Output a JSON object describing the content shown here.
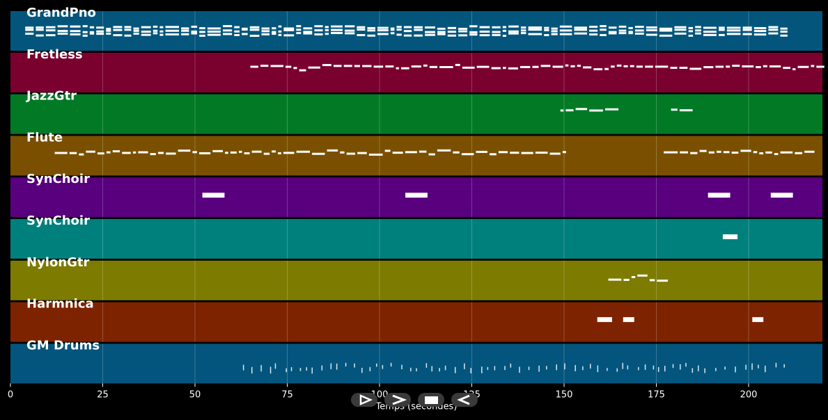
{
  "tracks": [
    {
      "name": "GrandPno",
      "color": "#04557c",
      "pitch": [
        44,
        46,
        45,
        47,
        45,
        44,
        46,
        45,
        47,
        46
      ],
      "spans": [
        [
          4,
          210
        ]
      ],
      "style": "chords"
    },
    {
      "name": "Fretless",
      "color": "#7a002e",
      "pitch": [
        62,
        60,
        61,
        58,
        55,
        52,
        58,
        62,
        60,
        61
      ],
      "spans": [
        [
          65,
          219
        ]
      ],
      "style": "line"
    },
    {
      "name": "JazzGtr",
      "color": "#027a25",
      "pitch": [
        55,
        55
      ],
      "spans": [
        [
          149,
          163
        ],
        [
          179,
          182
        ]
      ],
      "style": "line"
    },
    {
      "name": "Flute",
      "color": "#7a5000",
      "pitch": [
        50,
        52,
        48,
        55,
        50,
        52,
        53,
        49,
        55,
        51
      ],
      "spans": [
        [
          12,
          150
        ],
        [
          177,
          217
        ]
      ],
      "style": "line"
    },
    {
      "name": "SynChoir",
      "color": "#58007e",
      "pitch": [
        50,
        50
      ],
      "spans": [
        [
          52,
          58
        ],
        [
          107,
          113
        ],
        [
          189,
          195
        ],
        [
          206,
          212
        ]
      ],
      "style": "block"
    },
    {
      "name": "SynChoir",
      "color": "#00807d",
      "pitch": [
        50
      ],
      "spans": [
        [
          193,
          197
        ]
      ],
      "style": "block"
    },
    {
      "name": "NylonGtr",
      "color": "#7d7b00",
      "pitch": [
        45,
        44,
        50,
        58
      ],
      "spans": [
        [
          162,
          176
        ]
      ],
      "style": "line"
    },
    {
      "name": "Harmnica",
      "color": "#7e2300",
      "pitch": [
        52,
        52
      ],
      "spans": [
        [
          159,
          163
        ],
        [
          166,
          169
        ],
        [
          201,
          204
        ]
      ],
      "style": "block"
    },
    {
      "name": "GM Drums",
      "color": "#03557d",
      "pitch": [
        40
      ],
      "spans": [
        [
          63,
          211
        ]
      ],
      "style": "drums"
    }
  ],
  "x_axis": {
    "label": "Temps (secondes)",
    "ticks": [
      "0",
      "25",
      "50",
      "75",
      "100",
      "125",
      "150",
      "175",
      "200"
    ],
    "tick_values": [
      0,
      25,
      50,
      75,
      100,
      125,
      150,
      175,
      200
    ],
    "range": [
      0,
      220
    ]
  },
  "transport": {
    "buttons": [
      {
        "name": "play-icon",
        "label": "play"
      },
      {
        "name": "fast-forward-icon",
        "label": "fast forward"
      },
      {
        "name": "stop-icon",
        "label": "stop"
      },
      {
        "name": "rewind-icon",
        "label": "rewind"
      }
    ]
  }
}
